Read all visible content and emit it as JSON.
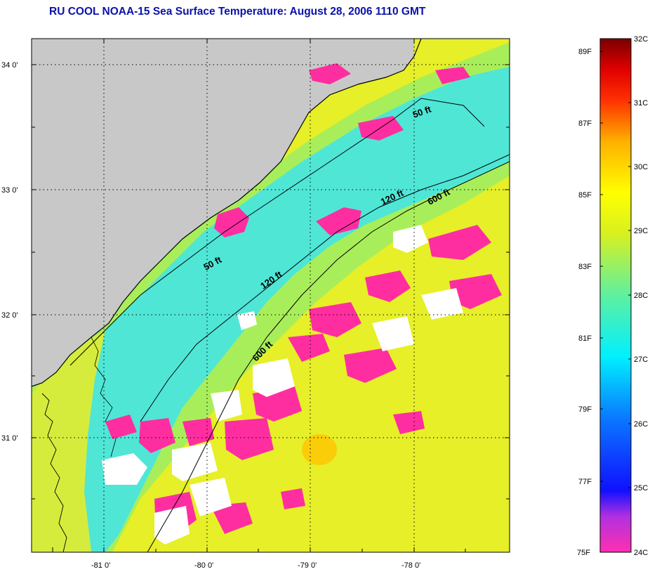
{
  "title": "RU COOL  NOAA-15  Sea Surface Temperature:  August 28, 2006 1110 GMT",
  "map": {
    "lat_ticks": [
      "34 0'",
      "33 0'",
      "32 0'",
      "31 0'"
    ],
    "lon_ticks": [
      "-81 0'",
      "-80 0'",
      "-79 0'",
      "-78 0'"
    ],
    "contours": [
      "50 ft",
      "120 ft",
      "600 ft",
      "50 ft",
      "120 ft",
      "600 ft"
    ],
    "colors": {
      "land": "#c8c8c8",
      "cloud": "#ffffff",
      "cold_mask": "#ff2ea0"
    }
  },
  "colorbar": {
    "celsius": [
      "32C",
      "31C",
      "30C",
      "29C",
      "28C",
      "27C",
      "26C",
      "25C",
      "24C"
    ],
    "fahrenheit": [
      "89F",
      "87F",
      "85F",
      "83F",
      "81F",
      "79F",
      "77F",
      "75F"
    ],
    "range_c": [
      24,
      32
    ]
  }
}
